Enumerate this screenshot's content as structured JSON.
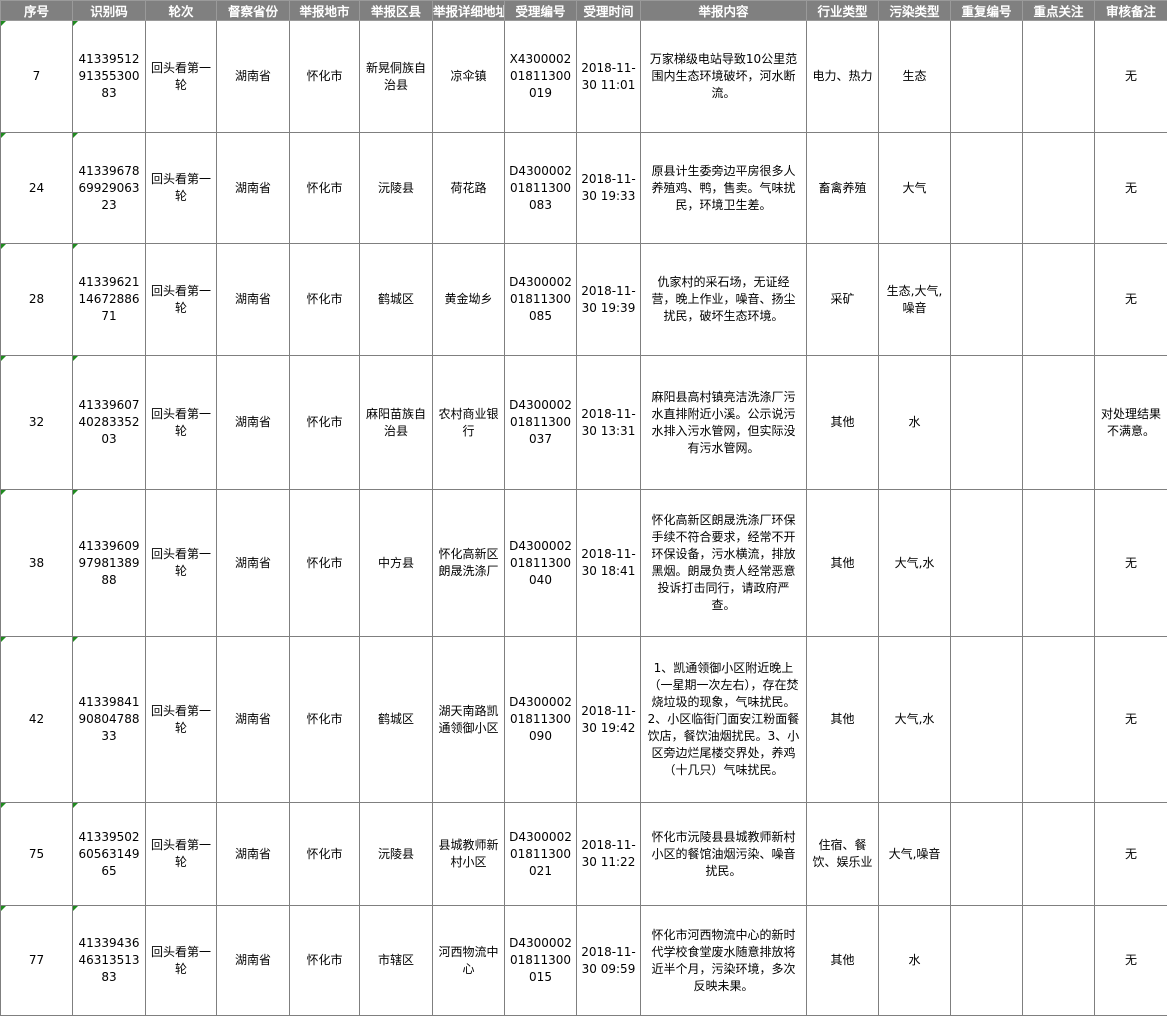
{
  "headers": [
    "序号",
    "识别码",
    "轮次",
    "督察省份",
    "举报地市",
    "举报区县",
    "举报详细地址",
    "受理编号",
    "受理时间",
    "举报内容",
    "行业类型",
    "污染类型",
    "重复编号",
    "重点关注",
    "审核备注"
  ],
  "rows": [
    [
      "7",
      "413395129135530083",
      "回头看第一轮",
      "湖南省",
      "怀化市",
      "新晃侗族自治县",
      "凉伞镇",
      "X430000201811300019",
      "2018-11-30 11:01",
      "万家梯级电站导致10公里范围内生态环境破坏，河水断流。",
      "电力、热力",
      "生态",
      "",
      "",
      "无"
    ],
    [
      "24",
      "413396786992906323",
      "回头看第一轮",
      "湖南省",
      "怀化市",
      "沅陵县",
      "荷花路",
      "D430000201811300083",
      "2018-11-30 19:33",
      "原县计生委旁边平房很多人养殖鸡、鸭，售卖。气味扰民，环境卫生差。",
      "畜禽养殖",
      "大气",
      "",
      "",
      "无"
    ],
    [
      "28",
      "413396211467288671",
      "回头看第一轮",
      "湖南省",
      "怀化市",
      "鹤城区",
      "黄金坳乡",
      "D430000201811300085",
      "2018-11-30 19:39",
      "仇家村的采石场，无证经营，晚上作业，噪音、扬尘扰民，破坏生态环境。",
      "采矿",
      "生态,大气,噪音",
      "",
      "",
      "无"
    ],
    [
      "32",
      "413396074028335203",
      "回头看第一轮",
      "湖南省",
      "怀化市",
      "麻阳苗族自治县",
      "农村商业银行",
      "D430000201811300037",
      "2018-11-30 13:31",
      "麻阳县高村镇亮洁洗涤厂污水直排附近小溪。公示说污水排入污水管网，但实际没有污水管网。",
      "其他",
      "水",
      "",
      "",
      "对处理结果不满意。"
    ],
    [
      "38",
      "413396099798138988",
      "回头看第一轮",
      "湖南省",
      "怀化市",
      "中方县",
      "怀化高新区朗晟洗涤厂",
      "D430000201811300040",
      "2018-11-30 18:41",
      "怀化高新区朗晟洗涤厂环保手续不符合要求，经常不开环保设备，污水横流，排放黑烟。朗晟负责人经常恶意投诉打击同行，请政府严查。",
      "其他",
      "大气,水",
      "",
      "",
      "无"
    ],
    [
      "42",
      "413398419080478833",
      "回头看第一轮",
      "湖南省",
      "怀化市",
      "鹤城区",
      "湖天南路凯通领御小区",
      "D430000201811300090",
      "2018-11-30 19:42",
      "1、凯通领御小区附近晚上（一星期一次左右），存在焚烧垃圾的现象，气味扰民。2、小区临街门面安江粉面餐饮店，餐饮油烟扰民。3、小区旁边烂尾楼交界处，养鸡（十几只）气味扰民。",
      "其他",
      "大气,水",
      "",
      "",
      "无"
    ],
    [
      "75",
      "413395026056314965",
      "回头看第一轮",
      "湖南省",
      "怀化市",
      "沅陵县",
      "县城教师新村小区",
      "D430000201811300021",
      "2018-11-30 11:22",
      "怀化市沅陵县县城教师新村小区的餐馆油烟污染、噪音扰民。",
      "住宿、餐饮、娱乐业",
      "大气,噪音",
      "",
      "",
      "无"
    ],
    [
      "77",
      "413394364631351383",
      "回头看第一轮",
      "湖南省",
      "怀化市",
      "市辖区",
      "河西物流中心",
      "D430000201811300015",
      "2018-11-30 09:59",
      "怀化市河西物流中心的新时代学校食堂废水随意排放将近半个月，污染环境，多次反映未果。",
      "其他",
      "水",
      "",
      "",
      "无"
    ]
  ],
  "colors": {
    "header_bg": "#808080",
    "header_text": "#ffffff",
    "grid": "#7f7f7f",
    "comment_marker": "#1f8a1f"
  }
}
